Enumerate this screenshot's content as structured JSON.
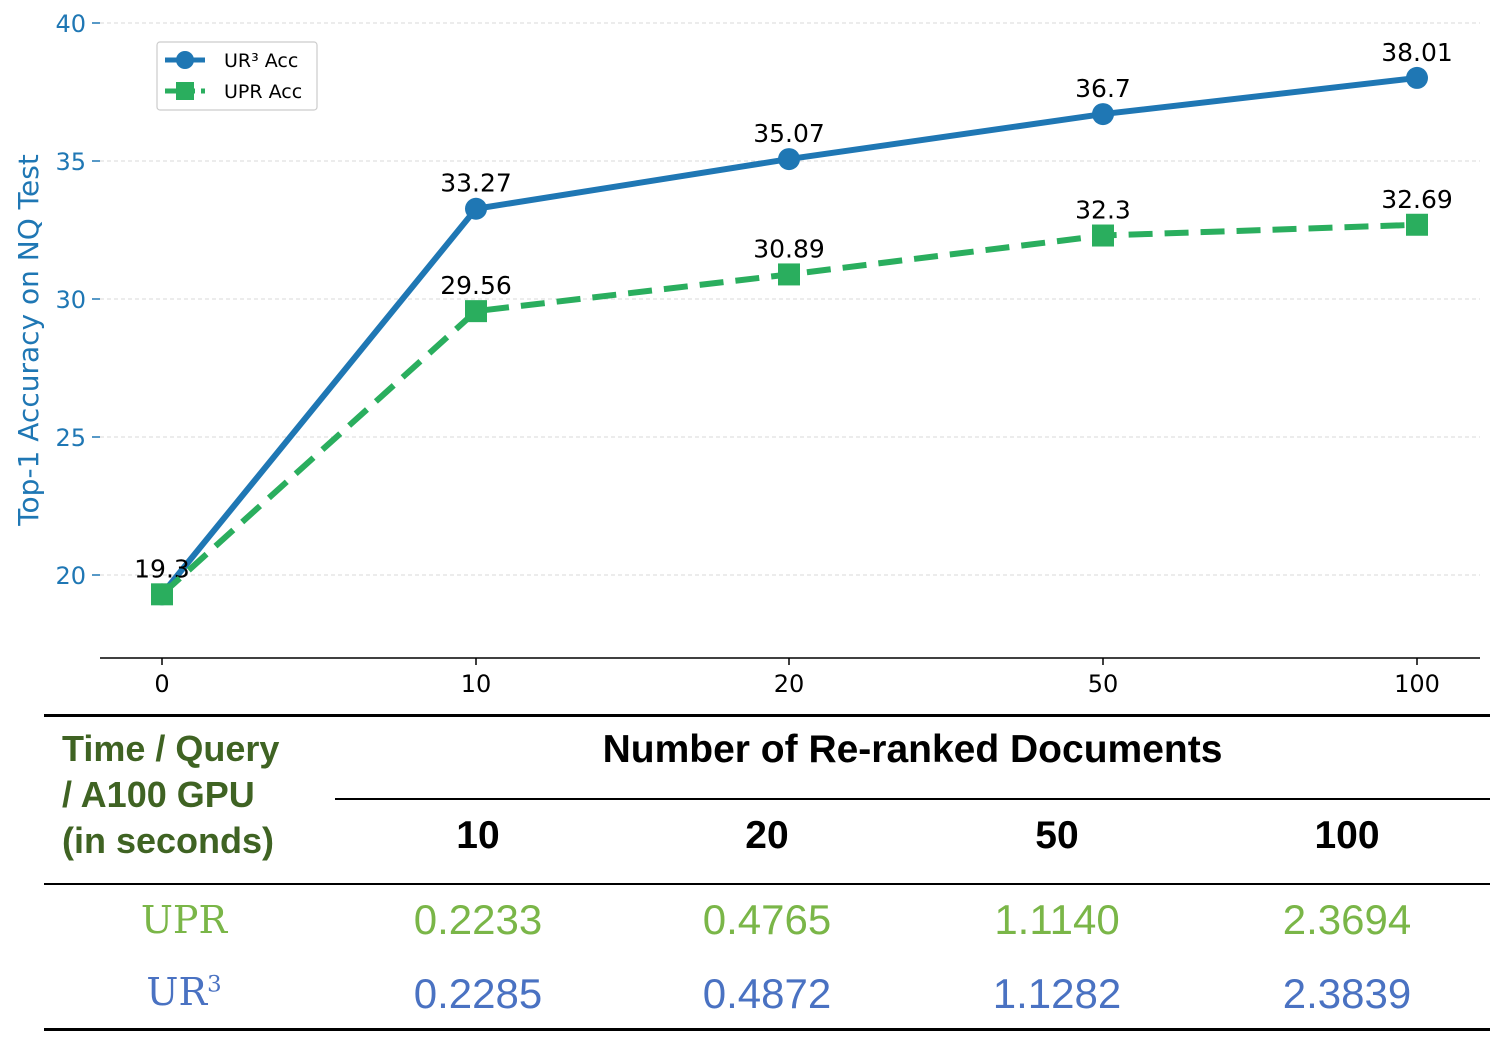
{
  "chart_data": {
    "type": "line",
    "x": [
      "0",
      "10",
      "20",
      "50",
      "100"
    ],
    "ylabel": "Top-1 Accuracy on NQ Test",
    "ylim": [
      17,
      40
    ],
    "yticks": [
      20,
      25,
      30,
      35,
      40
    ],
    "grid": "horizontal dashed",
    "legend": "top-left",
    "series": [
      {
        "name": "UR³ Acc",
        "color": "#1f77b4",
        "style": "solid",
        "marker": "circle",
        "values": [
          19.3,
          33.27,
          35.07,
          36.7,
          38.01
        ],
        "labels": [
          "19.3",
          "33.27",
          "35.07",
          "36.7",
          "38.01"
        ]
      },
      {
        "name": "UPR Acc",
        "color": "#2aae5e",
        "style": "dashed",
        "marker": "square",
        "values": [
          19.3,
          29.56,
          30.89,
          32.3,
          32.69
        ],
        "labels": [
          "",
          "29.56",
          "30.89",
          "32.3",
          "32.69"
        ]
      }
    ]
  },
  "table": {
    "corner_lines": [
      "Time / Query",
      "/ A100 GPU",
      "(in seconds)"
    ],
    "header": "Number of Re-ranked Documents",
    "columns": [
      "10",
      "20",
      "50",
      "100"
    ],
    "rows": [
      {
        "label": "UPR",
        "label_sup": "",
        "color": "#7ab648",
        "values": [
          "0.2233",
          "0.4765",
          "1.1140",
          "2.3694"
        ]
      },
      {
        "label": "UR",
        "label_sup": "3",
        "color": "#4a72c2",
        "values": [
          "0.2285",
          "0.4872",
          "1.1282",
          "2.3839"
        ]
      }
    ]
  }
}
